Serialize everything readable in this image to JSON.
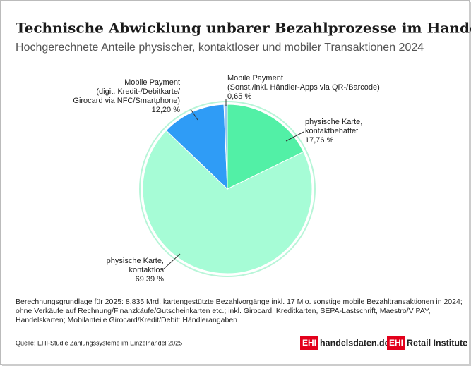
{
  "chart_data": {
    "type": "pie",
    "title": "Technische Abwicklung unbarer Bezahlprozesse im Handel",
    "subtitle": "Hochgerechnete Anteile physischer, kontaktloser und mobiler Transaktionen 2024",
    "categories": [
      "physische Karte,\nkontaktbehaftet",
      "physische Karte,\nkontaktlos",
      "Mobile Payment\n(digit. Kredit-/Debitkarte/\nGirocard via NFC/Smartphone)",
      "Mobile Payment\n(Sonst./inkl. Händler-Apps via QR-/Barcode)"
    ],
    "values": [
      17.76,
      69.39,
      12.2,
      0.65
    ],
    "value_labels": [
      "17,76 %",
      "69,39 %",
      "12,20 %",
      "0,65 %"
    ],
    "colors": [
      "#52f0a6",
      "#a6fcd6",
      "#2f9cf6",
      "#9cc6f2"
    ]
  },
  "notes": [
    "Berechnungsgrundlage für 2025: 8,835 Mrd. kartengestützte Bezahlvorgänge inkl. 17 Mio. sonstige mobile Bezahltransaktionen in 2024;",
    "ohne Verkäufe auf Rechnung/Finanzkäufe/Gutscheinkarten etc.; inkl. Girocard, Kreditkarten, SEPA-Lastschrift, Maestro/V PAY,",
    "Handelskarten; Mobilanteile Girocard/Kredit/Debit: Händlerangaben"
  ],
  "source": "Quelle: EHI-Studie Zahlungssysteme im Einzelhandel 2025",
  "logos": [
    {
      "mark": "EHI",
      "text": "handelsdaten.de"
    },
    {
      "mark": "EHI",
      "text": "Retail Institute"
    }
  ]
}
